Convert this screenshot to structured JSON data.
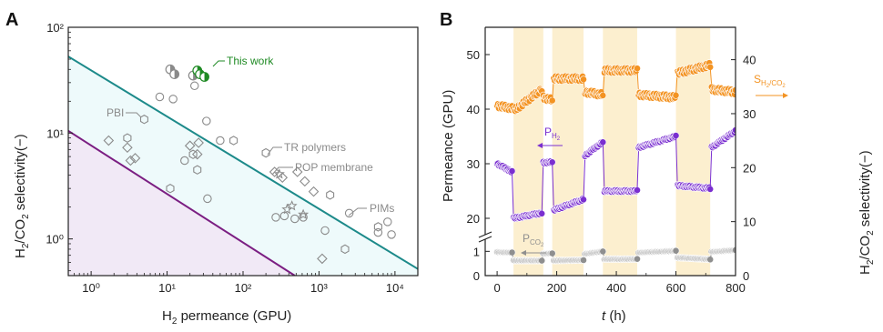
{
  "colors": {
    "upper_bound": "#1d8a8a",
    "lower_bound": "#7b1e82",
    "upper_fill": "#eefafb",
    "lower_fill": "#f1e9f6",
    "marker_gray": "#8a8a8a",
    "this_work": "#1f8a24",
    "sel_orange": "#f39322",
    "h2_purple": "#7a2fd0",
    "co2_gray": "#8f8f8f",
    "band": "#fcefcf",
    "text_dark": "#222222"
  },
  "chart_data": [
    {
      "panel_label": "A",
      "type": "scatter",
      "title": "",
      "xlabel_main": "H",
      "xlabel_sub": "2",
      "xlabel_rest": " permeance (GPU)",
      "ylabel_main": "H",
      "ylabel_sub": "2",
      "ylabel_mid": "/CO",
      "ylabel_sub2": "2",
      "ylabel_rest": " selectivity(−)",
      "x_scale": "log",
      "y_scale": "log",
      "xlim": [
        0.5,
        20000
      ],
      "ylim": [
        0.45,
        100
      ],
      "x_ticks": [
        {
          "v": 1,
          "label": "10⁰"
        },
        {
          "v": 10,
          "label": "10¹"
        },
        {
          "v": 100,
          "label": "10²"
        },
        {
          "v": 1000,
          "label": "10³"
        },
        {
          "v": 10000,
          "label": "10⁴"
        }
      ],
      "y_ticks": [
        {
          "v": 1,
          "label": "10⁰"
        },
        {
          "v": 10,
          "label": "10¹"
        },
        {
          "v": 100,
          "label": "10²"
        }
      ],
      "upper_bound": [
        [
          0.5,
          53
        ],
        [
          20000,
          0.52
        ]
      ],
      "lower_bound": [
        [
          0.5,
          10.5
        ],
        [
          480,
          0.45
        ]
      ],
      "annotations": [
        "This work",
        "PBI",
        "TR polymers",
        "POP membrane",
        "PIMs"
      ],
      "series": [
        {
          "marker": "circle",
          "points": [
            [
              8,
              22
            ],
            [
              12,
              21
            ],
            [
              23,
              28
            ],
            [
              33,
              13
            ],
            [
              17,
              5.5
            ],
            [
              34,
              2.4
            ],
            [
              50,
              8.5
            ],
            [
              270,
              1.6
            ],
            [
              350,
              1.65
            ],
            [
              480,
              1.55
            ],
            [
              620,
              1.6
            ],
            [
              1200,
              1.2
            ],
            [
              2500,
              1.75
            ],
            [
              6000,
              1.15
            ],
            [
              8000,
              1.45
            ],
            [
              9000,
              1.1
            ]
          ]
        },
        {
          "marker": "hexagon",
          "points": [
            [
              5,
              13.5
            ],
            [
              3,
              9
            ],
            [
              22,
              6.3
            ],
            [
              25,
              4.5
            ],
            [
              75,
              8.5
            ],
            [
              11,
              3
            ],
            [
              1400,
              2.6
            ],
            [
              200,
              6.5
            ],
            [
              2200,
              0.8
            ],
            [
              6000,
              1.3
            ]
          ]
        },
        {
          "marker": "diamond",
          "points": [
            [
              1.7,
              8.5
            ],
            [
              3,
              7.3
            ],
            [
              3.3,
              5.5
            ],
            [
              3.8,
              5.8
            ],
            [
              20,
              7.6
            ],
            [
              26,
              8.1
            ],
            [
              25,
              6.3
            ],
            [
              260,
              4.3
            ],
            [
              330,
              3.8
            ],
            [
              520,
              4.3
            ],
            [
              650,
              3.5
            ],
            [
              850,
              2.8
            ],
            [
              1100,
              0.65
            ]
          ]
        },
        {
          "marker": "star",
          "points": [
            [
              300,
              4.1
            ],
            [
              380,
              1.9
            ],
            [
              440,
              2.05
            ],
            [
              620,
              1.7
            ]
          ]
        },
        {
          "marker": "halfcircle",
          "points": [
            [
              11,
              40
            ],
            [
              12.5,
              36
            ],
            [
              22,
              35
            ]
          ]
        },
        {
          "marker": "thiswork",
          "points": [
            [
              25,
              39
            ],
            [
              27,
              36
            ],
            [
              31,
              34
            ]
          ]
        }
      ]
    },
    {
      "panel_label": "B",
      "type": "line",
      "title": "",
      "xlabel": "t",
      "xlabel_unit": " (h)",
      "ylabel_left": "Permeance (GPU)",
      "ylabel_right_main": "H",
      "ylabel_right_sub": "2",
      "ylabel_right_mid": "/CO",
      "ylabel_right_sub2": "2",
      "ylabel_right_rest": " selectivity(−)",
      "xlim": [
        -40,
        800
      ],
      "x_ticks": [
        0,
        200,
        400,
        600,
        800
      ],
      "y_left_ticks_upper": [
        20,
        30,
        40,
        50
      ],
      "y_left_ticks_lower": [
        0,
        1
      ],
      "y_right_ticks": [
        0,
        10,
        20,
        30,
        40
      ],
      "y_right_lim": [
        0,
        46
      ],
      "shaded_intervals_h": [
        [
          55,
          155
        ],
        [
          185,
          290
        ],
        [
          355,
          470
        ],
        [
          600,
          715
        ]
      ],
      "labels": {
        "p_h2_main": "P",
        "p_h2_sub": "H",
        "p_h2_sub2": "2",
        "p_co2_main": "P",
        "p_co2_sub": "CO",
        "p_co2_sub2": "2",
        "s_main": "S",
        "s_sub": "H",
        "s_sub2": "2",
        "s_mid": "/CO",
        "s_sub3": "2"
      },
      "series": [
        {
          "name": "S_H2/CO2",
          "axis": "right",
          "segments": [
            [
              [
                0,
                31.5
              ],
              [
                50,
                31
              ]
            ],
            [
              [
                55,
                30.5
              ],
              [
                150,
                34.5
              ]
            ],
            [
              [
                155,
                33
              ],
              [
                185,
                32.5
              ]
            ],
            [
              [
                190,
                36.5
              ],
              [
                290,
                36.5
              ]
            ],
            [
              [
                295,
                34
              ],
              [
                355,
                33.5
              ]
            ],
            [
              [
                360,
                38
              ],
              [
                470,
                38
              ]
            ],
            [
              [
                475,
                33.5
              ],
              [
                600,
                33
              ]
            ],
            [
              [
                605,
                37.5
              ],
              [
                715,
                39
              ]
            ],
            [
              [
                720,
                34.5
              ],
              [
                800,
                34
              ]
            ]
          ]
        },
        {
          "name": "P_H2",
          "axis": "left",
          "segments": [
            [
              [
                0,
                30
              ],
              [
                50,
                28.5
              ]
            ],
            [
              [
                55,
                20
              ],
              [
                150,
                21
              ]
            ],
            [
              [
                155,
                30.2
              ],
              [
                185,
                30.3
              ]
            ],
            [
              [
                190,
                21.5
              ],
              [
                290,
                23.5
              ]
            ],
            [
              [
                295,
                31.5
              ],
              [
                355,
                34
              ]
            ],
            [
              [
                360,
                25
              ],
              [
                470,
                25
              ]
            ],
            [
              [
                475,
                33
              ],
              [
                600,
                35
              ]
            ],
            [
              [
                605,
                26
              ],
              [
                715,
                25.5
              ]
            ],
            [
              [
                720,
                33
              ],
              [
                800,
                36
              ]
            ]
          ]
        },
        {
          "name": "P_CO2",
          "axis": "left",
          "segments": [
            [
              [
                0,
                0.97
              ],
              [
                50,
                0.95
              ]
            ],
            [
              [
                55,
                0.62
              ],
              [
                150,
                0.62
              ]
            ],
            [
              [
                155,
                0.9
              ],
              [
                185,
                0.92
              ]
            ],
            [
              [
                190,
                0.62
              ],
              [
                290,
                0.64
              ]
            ],
            [
              [
                295,
                0.9
              ],
              [
                355,
                1.0
              ]
            ],
            [
              [
                360,
                0.68
              ],
              [
                470,
                0.68
              ]
            ],
            [
              [
                475,
                0.95
              ],
              [
                600,
                1.02
              ]
            ],
            [
              [
                605,
                0.74
              ],
              [
                715,
                0.67
              ]
            ],
            [
              [
                720,
                0.98
              ],
              [
                800,
                1.05
              ]
            ]
          ]
        }
      ]
    }
  ]
}
